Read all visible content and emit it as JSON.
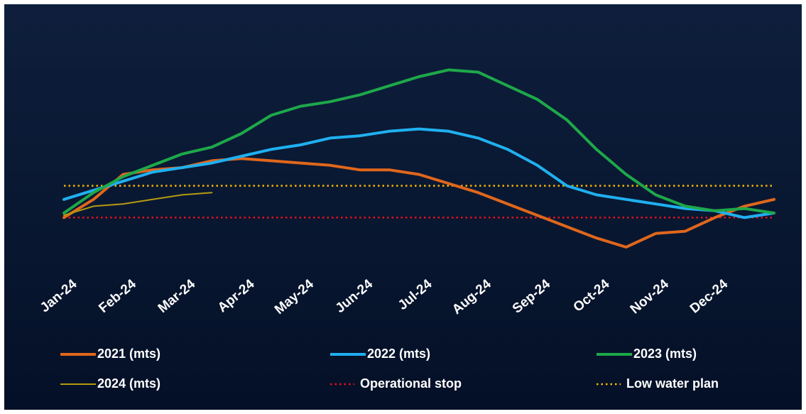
{
  "chart_data": {
    "type": "line",
    "categories": [
      "Jan-24",
      null,
      "Feb-24",
      null,
      "Mar-24",
      null,
      "Apr-24",
      null,
      "May-24",
      null,
      "Jun-24",
      null,
      "Jul-24",
      null,
      "Aug-24",
      null,
      "Sep-24",
      null,
      "Oct-24",
      null,
      "Nov-24",
      null,
      "Dec-24",
      null,
      null
    ],
    "ylim": [
      0,
      10
    ],
    "series": [
      {
        "name": "2021 (mts)",
        "color": "#e0671c",
        "values": [
          2.3,
          3.1,
          4.2,
          4.4,
          4.5,
          4.8,
          4.9,
          4.8,
          4.7,
          4.6,
          4.4,
          4.4,
          4.2,
          3.8,
          3.4,
          2.9,
          2.4,
          1.9,
          1.4,
          1.0,
          1.6,
          1.7,
          2.3,
          2.8,
          3.1
        ]
      },
      {
        "name": "2022 (mts)",
        "color": "#1fb0f0",
        "values": [
          3.1,
          3.5,
          3.9,
          4.3,
          4.5,
          4.7,
          5.0,
          5.3,
          5.5,
          5.8,
          5.9,
          6.1,
          6.2,
          6.1,
          5.8,
          5.3,
          4.6,
          3.7,
          3.3,
          3.1,
          2.9,
          2.7,
          2.6,
          2.3,
          2.5
        ]
      },
      {
        "name": "2023 (mts)",
        "color": "#1ea84a",
        "values": [
          2.5,
          3.4,
          4.1,
          4.6,
          5.1,
          5.4,
          6.0,
          6.8,
          7.2,
          7.4,
          7.7,
          8.1,
          8.5,
          8.8,
          8.7,
          8.1,
          7.5,
          6.6,
          5.3,
          4.2,
          3.3,
          2.8,
          2.6,
          2.7,
          2.5
        ]
      },
      {
        "name": "2024 (mts)",
        "color": "#b59a10",
        "values": [
          2.4,
          2.8,
          2.9,
          3.1,
          3.3,
          3.4,
          null,
          null,
          null,
          null,
          null,
          null,
          null,
          null,
          null,
          null,
          null,
          null,
          null,
          null,
          null,
          null,
          null,
          null,
          null
        ]
      },
      {
        "name": "Operational stop",
        "color": "#e8101c",
        "style": "dotted",
        "value": 2.3
      },
      {
        "name": "Low water plan",
        "color": "#f5b800",
        "style": "dotted",
        "value": 3.7
      }
    ]
  }
}
